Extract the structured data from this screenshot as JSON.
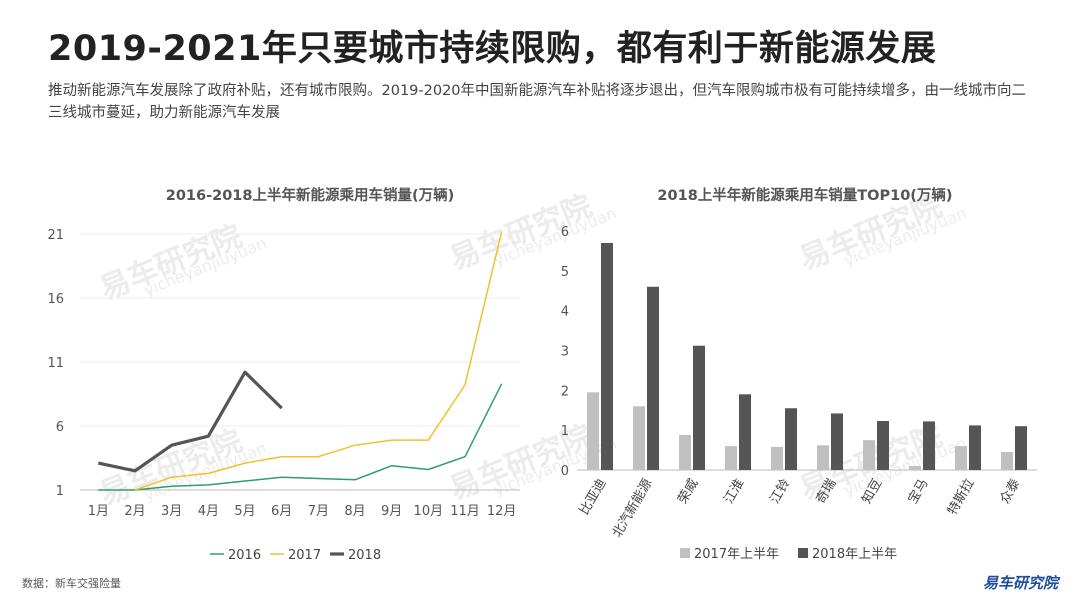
{
  "page": {
    "title": "2019-2021年只要城市持续限购，都有利于新能源发展",
    "subtitle": "推动新能源汽车发展除了政府补贴，还有城市限购。2019-2020年中国新能源汽车补贴将逐步退出，但汽车限购城市极有可能持续增多，由一线城市向二三线城市蔓延，助力新能源汽车发展",
    "source": "数据：新车交强险量",
    "logo": "易车研究院",
    "watermark": "易车研究院",
    "watermark_sub": "yicheyanjiuyuan"
  },
  "chart_data": [
    {
      "type": "line",
      "title": "2016-2018上半年新能源乘用车销量(万辆)",
      "categories": [
        "1月",
        "2月",
        "3月",
        "4月",
        "5月",
        "6月",
        "7月",
        "8月",
        "9月",
        "10月",
        "11月",
        "12月"
      ],
      "ylim": [
        1,
        21
      ],
      "yticks": [
        1,
        6,
        11,
        16,
        21
      ],
      "series": [
        {
          "name": "2016",
          "color": "#2e9e6e",
          "width": 1.5,
          "values": [
            1,
            1,
            1.3,
            1.4,
            1.7,
            2.0,
            1.9,
            1.8,
            2.9,
            2.6,
            3.6,
            9.3
          ]
        },
        {
          "name": "2017",
          "color": "#f2c029",
          "width": 1.5,
          "values": [
            null,
            1,
            2,
            2.3,
            3.1,
            3.6,
            3.6,
            4.5,
            4.9,
            4.9,
            9.2,
            21.2
          ]
        },
        {
          "name": "2018",
          "color": "#555555",
          "width": 3.2,
          "values": [
            3.1,
            2.5,
            4.5,
            5.2,
            10.2,
            7.4,
            null,
            null,
            null,
            null,
            null,
            null
          ]
        }
      ]
    },
    {
      "type": "bar",
      "title": "2018上半年新能源乘用车销量TOP10(万辆)",
      "categories": [
        "比亚迪",
        "北汽新能源",
        "荣威",
        "江淮",
        "江铃",
        "奇瑞",
        "知豆",
        "宝马",
        "特斯拉",
        "众泰"
      ],
      "ylim": [
        0,
        6
      ],
      "yticks": [
        0,
        1,
        2,
        3,
        4,
        5,
        6
      ],
      "series": [
        {
          "name": "2017年上半年",
          "color": "#c0c0c0",
          "values": [
            1.95,
            1.6,
            0.88,
            0.6,
            0.58,
            0.62,
            0.75,
            0.1,
            0.6,
            0.45
          ]
        },
        {
          "name": "2018年上半年",
          "color": "#555555",
          "values": [
            5.7,
            4.6,
            3.12,
            1.9,
            1.55,
            1.42,
            1.23,
            1.22,
            1.12,
            1.1
          ]
        }
      ]
    }
  ]
}
